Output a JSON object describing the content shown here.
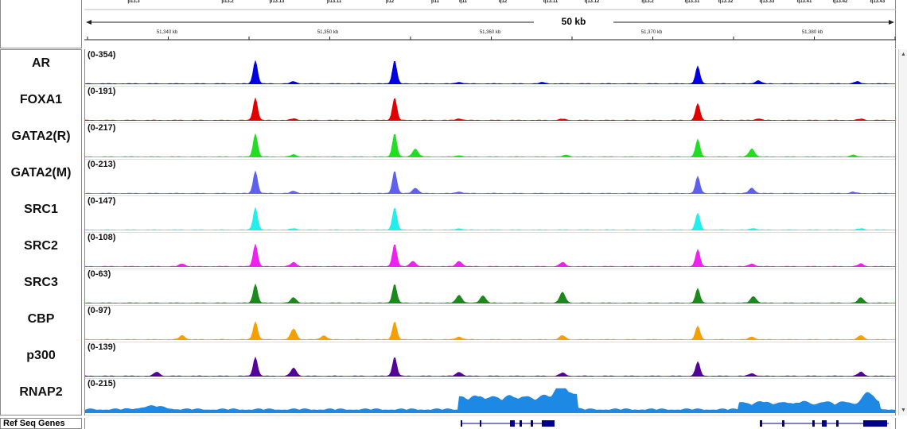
{
  "ruler": {
    "bands": [
      "p13.3",
      "p13.2",
      "p13.13",
      "p13.11",
      "p12",
      "p11",
      "q11",
      "q12",
      "q13.11",
      "q13.12",
      "q13.2",
      "q13.31",
      "q13.32",
      "q13.33",
      "q13.41",
      "q13.42",
      "q13.43"
    ],
    "span": "50 kb",
    "coords": [
      "51,340 kb",
      "51,350 kb",
      "51,360 kb",
      "51,370 kb",
      "51,380 kb"
    ]
  },
  "tracks": [
    {
      "name": "AR",
      "range": "(0-354)",
      "color": "#0000e0"
    },
    {
      "name": "FOXA1",
      "range": "(0-191)",
      "color": "#e00000"
    },
    {
      "name": "GATA2(R)",
      "range": "(0-217)",
      "color": "#22dd22"
    },
    {
      "name": "GATA2(M)",
      "range": "(0-213)",
      "color": "#6060ee"
    },
    {
      "name": "SRC1",
      "range": "(0-147)",
      "color": "#22eeee"
    },
    {
      "name": "SRC2",
      "range": "(0-108)",
      "color": "#ee22ee"
    },
    {
      "name": "SRC3",
      "range": "(0-63)",
      "color": "#1a8a1a"
    },
    {
      "name": "CBP",
      "range": "(0-97)",
      "color": "#f5a000"
    },
    {
      "name": "p300",
      "range": "(0-139)",
      "color": "#550099"
    },
    {
      "name": "RNAP2",
      "range": "(0-215)",
      "color": "#1e88e5"
    }
  ],
  "gene_track": {
    "name": "Ref Seq Genes",
    "color": "#00008b"
  }
}
